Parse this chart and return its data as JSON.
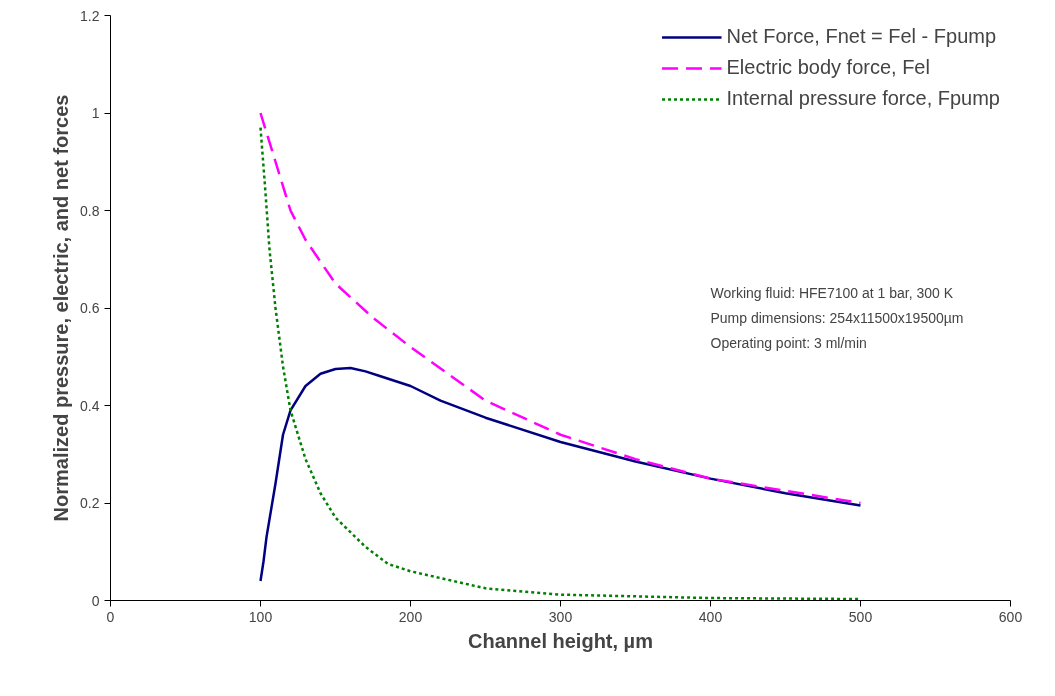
{
  "chart_data": {
    "type": "line",
    "xlabel": "Channel height, µm",
    "ylabel": "Normalized pressure, electric, and net forces",
    "xlim": [
      0,
      600
    ],
    "ylim": [
      0,
      1.2
    ],
    "xticks": [
      0,
      100,
      200,
      300,
      400,
      500,
      600
    ],
    "yticks": [
      0,
      0.2,
      0.4,
      0.6,
      0.8,
      1,
      1.2
    ],
    "grid": false,
    "legend": "top right",
    "marker": "none",
    "series": [
      {
        "name": "Net Force, Fnet = Fel - Fpump",
        "color": "#000080",
        "line_style": "solid",
        "x": [
          100,
          102,
          104,
          110,
          115,
          120,
          130,
          140,
          150,
          160,
          170,
          180,
          200,
          220,
          250,
          300,
          350,
          400,
          450,
          500
        ],
        "values": [
          0.04,
          0.08,
          0.13,
          0.24,
          0.34,
          0.39,
          0.44,
          0.465,
          0.475,
          0.477,
          0.47,
          0.46,
          0.44,
          0.41,
          0.375,
          0.325,
          0.285,
          0.25,
          0.22,
          0.195
        ]
      },
      {
        "name": "Electric body force, Fel",
        "color": "#ff00ff",
        "line_style": "dashed",
        "x": [
          100,
          110,
          120,
          130,
          150,
          175,
          200,
          250,
          300,
          350,
          400,
          450,
          500
        ],
        "values": [
          1,
          0.9,
          0.8,
          0.74,
          0.65,
          0.58,
          0.52,
          0.41,
          0.34,
          0.29,
          0.25,
          0.225,
          0.2
        ]
      },
      {
        "name": "Internal pressure force, Fpump",
        "color": "#008000",
        "line_style": "dotted",
        "x": [
          100,
          103,
          106,
          110,
          115,
          120,
          130,
          140,
          150,
          170,
          185,
          200,
          250,
          300,
          400,
          500
        ],
        "values": [
          0.97,
          0.85,
          0.72,
          0.6,
          0.48,
          0.39,
          0.29,
          0.22,
          0.17,
          0.11,
          0.075,
          0.06,
          0.025,
          0.012,
          0.005,
          0.003
        ]
      }
    ],
    "annotations": [
      "Working fluid: HFE7100 at 1 bar, 300 K",
      "Pump dimensions: 254x11500x19500µm",
      "Operating point: 3 ml/min"
    ]
  }
}
